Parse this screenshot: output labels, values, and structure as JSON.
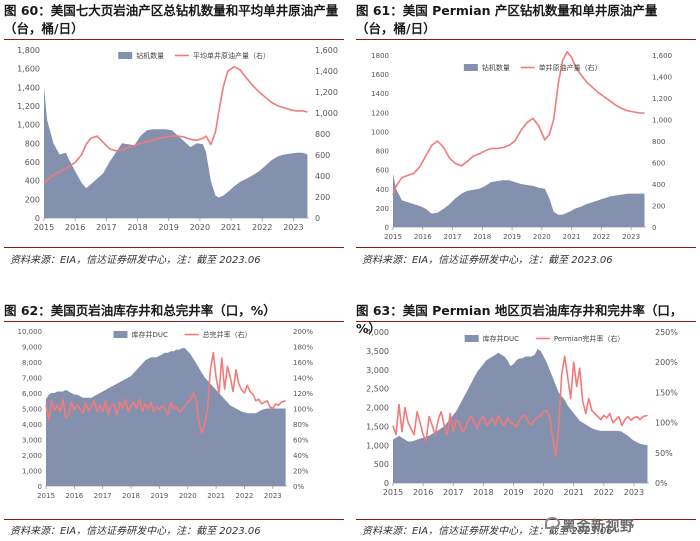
{
  "panels": {
    "p60": {
      "title": "图 60：美国七大页岩油产区总钻机数量和平均单井原油产量（台，桶/日）",
      "source": "资料来源：EIA，信达证券研发中心，注：截至 2023.06"
    },
    "p61": {
      "title": "图 61：美国 Permian 产区钻机数量和单井原油产量（台，桶/日）",
      "source": "资料来源：EIA，信达证券研发中心，注：截至 2023.06"
    },
    "p62": {
      "title": "图 62：美国页岩油库存井和总完井率（口，%）",
      "source": "资料来源：EIA，信达证券研发中心，注：截至 2023.06"
    },
    "p63": {
      "title": "图 63：美国 Permian 地区页岩油库存井和完井率（口，%）",
      "source": "资料来源：EIA，信达证券研发中心，注：截至 2023.06"
    }
  },
  "watermark": "黑金新视野",
  "colors": {
    "area": "#8390ae",
    "line": "#f27a7a",
    "accent": "#8b1a1a"
  },
  "chart_data": [
    {
      "id": "c60",
      "type": "area",
      "title": "美国七大页岩油产区总钻机数量和平均单井原油产量（台，桶/日）",
      "x": [
        2015.0,
        2015.1,
        2015.3,
        2015.5,
        2015.7,
        2015.8,
        2016.0,
        2016.2,
        2016.35,
        2016.5,
        2016.7,
        2016.9,
        2017.1,
        2017.3,
        2017.5,
        2017.7,
        2017.9,
        2018.1,
        2018.3,
        2018.5,
        2018.7,
        2018.9,
        2019.1,
        2019.3,
        2019.5,
        2019.7,
        2019.9,
        2020.1,
        2020.2,
        2020.35,
        2020.5,
        2020.6,
        2020.75,
        2020.9,
        2021.1,
        2021.3,
        2021.5,
        2021.7,
        2021.9,
        2022.1,
        2022.3,
        2022.5,
        2022.7,
        2022.9,
        2023.1,
        2023.3,
        2023.45
      ],
      "series": [
        {
          "name": "钻机数量",
          "axis": "left",
          "values": [
            1400,
            1050,
            800,
            680,
            700,
            630,
            500,
            380,
            320,
            360,
            420,
            480,
            600,
            700,
            800,
            790,
            780,
            880,
            940,
            950,
            950,
            950,
            940,
            880,
            820,
            760,
            800,
            790,
            700,
            400,
            240,
            220,
            240,
            280,
            340,
            390,
            420,
            460,
            500,
            560,
            620,
            660,
            680,
            690,
            700,
            700,
            680
          ]
        },
        {
          "name": "平均单井原油产量（右）",
          "axis": "right",
          "values": [
            330,
            360,
            410,
            440,
            470,
            490,
            530,
            600,
            700,
            760,
            780,
            720,
            660,
            640,
            650,
            670,
            690,
            710,
            730,
            740,
            760,
            770,
            780,
            780,
            770,
            750,
            740,
            760,
            780,
            700,
            820,
            1000,
            1250,
            1400,
            1440,
            1410,
            1330,
            1260,
            1200,
            1150,
            1100,
            1070,
            1050,
            1030,
            1020,
            1020,
            1010
          ]
        }
      ],
      "x_ticks": [
        "2015",
        "2016",
        "2017",
        "2018",
        "2019",
        "2020",
        "2021",
        "2022",
        "2023"
      ],
      "ylim_left": [
        0,
        1800
      ],
      "ylim_right": [
        0,
        1600
      ],
      "y_ticks_left": [
        "0",
        "200",
        "400",
        "600",
        "800",
        "1,000",
        "1,200",
        "1,400",
        "1,600",
        "1,800"
      ],
      "y_ticks_right": [
        "0",
        "200",
        "400",
        "600",
        "800",
        "1,000",
        "1,200",
        "1,400",
        "1,600"
      ],
      "legend": [
        "钻机数量",
        "平均单井原油产量（右）"
      ],
      "legend_position": "top-center"
    },
    {
      "id": "c61",
      "type": "area",
      "title": "美国 Permian 产区钻机数量和单井原油产量（台，桶/日）",
      "x": [
        2015.0,
        2015.1,
        2015.3,
        2015.5,
        2015.7,
        2015.9,
        2016.1,
        2016.3,
        2016.5,
        2016.7,
        2016.9,
        2017.1,
        2017.3,
        2017.5,
        2017.7,
        2017.9,
        2018.1,
        2018.3,
        2018.5,
        2018.7,
        2018.9,
        2019.1,
        2019.3,
        2019.5,
        2019.7,
        2019.9,
        2020.1,
        2020.25,
        2020.4,
        2020.55,
        2020.7,
        2020.85,
        2021.0,
        2021.1,
        2021.3,
        2021.5,
        2021.7,
        2021.9,
        2022.1,
        2022.3,
        2022.5,
        2022.7,
        2022.9,
        2023.1,
        2023.3,
        2023.45
      ],
      "series": [
        {
          "name": "钻机数量",
          "axis": "left",
          "values": [
            560,
            400,
            280,
            260,
            240,
            220,
            190,
            140,
            150,
            190,
            240,
            300,
            350,
            380,
            390,
            400,
            430,
            470,
            480,
            490,
            490,
            470,
            450,
            440,
            430,
            410,
            400,
            300,
            160,
            130,
            130,
            150,
            170,
            190,
            210,
            240,
            260,
            280,
            300,
            320,
            330,
            340,
            350,
            350,
            350,
            350
          ]
        },
        {
          "name": "单井原油产量（右）",
          "axis": "right",
          "values": [
            300,
            380,
            460,
            480,
            500,
            560,
            660,
            760,
            800,
            740,
            640,
            590,
            570,
            610,
            660,
            680,
            710,
            730,
            730,
            740,
            760,
            800,
            900,
            970,
            1010,
            940,
            810,
            860,
            1000,
            1330,
            1550,
            1630,
            1580,
            1510,
            1420,
            1350,
            1300,
            1250,
            1210,
            1170,
            1130,
            1100,
            1080,
            1070,
            1060,
            1060
          ]
        }
      ],
      "x_ticks": [
        "2015",
        "2016",
        "2017",
        "2018",
        "2019",
        "2020",
        "2021",
        "2022",
        "2023"
      ],
      "ylim_left": [
        0,
        1800
      ],
      "ylim_right": [
        0,
        1600
      ],
      "y_ticks_left": [
        "0",
        "200",
        "400",
        "600",
        "800",
        "1000",
        "1200",
        "1400",
        "1600",
        "1800"
      ],
      "y_ticks_right": [
        "0",
        "200",
        "400",
        "600",
        "800",
        "1,000",
        "1,200",
        "1,400",
        "1,600"
      ],
      "legend": [
        "钻机数量",
        "单井原油产量（右）"
      ],
      "legend_position": "top-center"
    },
    {
      "id": "c62",
      "type": "area",
      "title": "美国页岩油库存井和总完井率（口，%）",
      "x": [
        2015.0,
        2015.1,
        2015.2,
        2015.3,
        2015.4,
        2015.5,
        2015.6,
        2015.7,
        2015.8,
        2015.9,
        2016.0,
        2016.1,
        2016.2,
        2016.3,
        2016.4,
        2016.5,
        2016.6,
        2016.7,
        2016.8,
        2016.9,
        2017.0,
        2017.1,
        2017.2,
        2017.3,
        2017.4,
        2017.5,
        2017.6,
        2017.7,
        2017.8,
        2017.9,
        2018.0,
        2018.1,
        2018.2,
        2018.3,
        2018.4,
        2018.5,
        2018.6,
        2018.7,
        2018.8,
        2018.9,
        2019.0,
        2019.1,
        2019.2,
        2019.3,
        2019.4,
        2019.5,
        2019.6,
        2019.7,
        2019.8,
        2019.9,
        2020.0,
        2020.1,
        2020.2,
        2020.3,
        2020.4,
        2020.5,
        2020.6,
        2020.7,
        2020.8,
        2020.9,
        2021.0,
        2021.1,
        2021.2,
        2021.3,
        2021.4,
        2021.5,
        2021.6,
        2021.7,
        2021.8,
        2021.9,
        2022.0,
        2022.1,
        2022.2,
        2022.3,
        2022.4,
        2022.5,
        2022.6,
        2022.7,
        2022.8,
        2022.9,
        2023.0,
        2023.1,
        2023.2,
        2023.3,
        2023.45
      ],
      "series": [
        {
          "name": "库存井DUC",
          "axis": "left",
          "values": [
            5600,
            5900,
            6000,
            6000,
            6100,
            6100,
            6100,
            6200,
            6100,
            6000,
            5900,
            5900,
            5800,
            5700,
            5700,
            5700,
            5700,
            5800,
            5900,
            6000,
            6100,
            6200,
            6300,
            6400,
            6500,
            6600,
            6700,
            6800,
            6900,
            7000,
            7100,
            7300,
            7500,
            7700,
            7900,
            8100,
            8200,
            8300,
            8300,
            8300,
            8400,
            8500,
            8600,
            8600,
            8700,
            8700,
            8800,
            8800,
            8900,
            8900,
            8700,
            8500,
            8200,
            7900,
            7600,
            7300,
            7000,
            6800,
            6600,
            6400,
            6200,
            6000,
            5800,
            5600,
            5400,
            5200,
            5100,
            5000,
            4900,
            4800,
            4750,
            4700,
            4700,
            4700,
            4700,
            4800,
            4900,
            4950,
            5000,
            5000,
            5000,
            5000,
            5000,
            5000,
            5000
          ]
        },
        {
          "name": "总完井率（右）",
          "axis": "right",
          "values": [
            105,
            85,
            110,
            98,
            104,
            96,
            112,
            88,
            92,
            108,
            98,
            104,
            100,
            94,
            107,
            97,
            103,
            110,
            96,
            104,
            96,
            110,
            92,
            104,
            106,
            92,
            108,
            100,
            112,
            96,
            104,
            108,
            100,
            112,
            96,
            106,
            100,
            108,
            96,
            102,
            98,
            104,
            100,
            92,
            108,
            100,
            102,
            96,
            98,
            104,
            108,
            112,
            120,
            110,
            82,
            68,
            80,
            100,
            150,
            172,
            140,
            120,
            165,
            125,
            154,
            140,
            122,
            150,
            132,
            124,
            120,
            130,
            122,
            118,
            110,
            112,
            106,
            108,
            110,
            102,
            100,
            106,
            104,
            108,
            110
          ]
        }
      ],
      "x_ticks": [
        "2015",
        "2016",
        "2017",
        "2018",
        "2019",
        "2020",
        "2021",
        "2022",
        "2023"
      ],
      "ylim_left": [
        0,
        10000
      ],
      "ylim_right": [
        0,
        200
      ],
      "y_ticks_left": [
        "0",
        "1,000",
        "2,000",
        "3,000",
        "4,000",
        "5,000",
        "6,000",
        "7,000",
        "8,000",
        "9,000",
        "10,000"
      ],
      "y_ticks_right": [
        "0%",
        "20%",
        "40%",
        "60%",
        "80%",
        "100%",
        "120%",
        "140%",
        "160%",
        "180%",
        "200%"
      ],
      "legend": [
        "库存井DUC",
        "总完井率（右）"
      ],
      "legend_position": "top-center"
    },
    {
      "id": "c63",
      "type": "area",
      "title": "美国 Permian 地区页岩油库存井和完井率（口，%）",
      "x": [
        2015.0,
        2015.1,
        2015.2,
        2015.3,
        2015.4,
        2015.5,
        2015.6,
        2015.7,
        2015.8,
        2015.9,
        2016.0,
        2016.1,
        2016.2,
        2016.3,
        2016.4,
        2016.5,
        2016.6,
        2016.7,
        2016.8,
        2016.9,
        2017.0,
        2017.1,
        2017.2,
        2017.3,
        2017.4,
        2017.5,
        2017.6,
        2017.7,
        2017.8,
        2017.9,
        2018.0,
        2018.1,
        2018.2,
        2018.3,
        2018.4,
        2018.5,
        2018.6,
        2018.7,
        2018.8,
        2018.9,
        2019.0,
        2019.1,
        2019.2,
        2019.3,
        2019.4,
        2019.5,
        2019.6,
        2019.7,
        2019.8,
        2019.9,
        2020.0,
        2020.1,
        2020.2,
        2020.3,
        2020.4,
        2020.5,
        2020.6,
        2020.7,
        2020.8,
        2020.9,
        2021.0,
        2021.1,
        2021.2,
        2021.3,
        2021.4,
        2021.5,
        2021.6,
        2021.7,
        2021.8,
        2021.9,
        2022.0,
        2022.1,
        2022.2,
        2022.3,
        2022.4,
        2022.5,
        2022.6,
        2022.7,
        2022.8,
        2022.9,
        2023.0,
        2023.1,
        2023.2,
        2023.3,
        2023.45
      ],
      "series": [
        {
          "name": "库存井DUC",
          "axis": "left",
          "values": [
            1150,
            1200,
            1250,
            1200,
            1150,
            1100,
            1100,
            1120,
            1150,
            1180,
            1200,
            1230,
            1250,
            1300,
            1350,
            1400,
            1450,
            1500,
            1600,
            1700,
            1800,
            1900,
            2050,
            2200,
            2350,
            2500,
            2650,
            2800,
            2950,
            3050,
            3150,
            3250,
            3300,
            3350,
            3400,
            3450,
            3400,
            3350,
            3250,
            3100,
            3150,
            3250,
            3300,
            3300,
            3350,
            3350,
            3350,
            3400,
            3550,
            3500,
            3350,
            3200,
            3000,
            2800,
            2600,
            2400,
            2300,
            2200,
            2050,
            1950,
            1850,
            1750,
            1650,
            1600,
            1550,
            1500,
            1450,
            1420,
            1400,
            1380,
            1380,
            1380,
            1380,
            1380,
            1380,
            1380,
            1360,
            1300,
            1250,
            1180,
            1120,
            1080,
            1040,
            1020,
            1000
          ]
        },
        {
          "name": "Permian完井率（右）",
          "axis": "right",
          "values": [
            95,
            80,
            130,
            85,
            125,
            100,
            90,
            80,
            118,
            100,
            80,
            70,
            110,
            95,
            80,
            105,
            118,
            95,
            80,
            115,
            85,
            105,
            100,
            85,
            90,
            105,
            110,
            100,
            90,
            105,
            110,
            95,
            100,
            108,
            96,
            112,
            100,
            95,
            108,
            100,
            98,
            92,
            105,
            110,
            112,
            100,
            96,
            105,
            108,
            112,
            118,
            120,
            110,
            75,
            45,
            90,
            180,
            210,
            175,
            140,
            200,
            160,
            190,
            135,
            115,
            140,
            120,
            115,
            110,
            105,
            112,
            108,
            115,
            100,
            105,
            110,
            95,
            105,
            110,
            104,
            108,
            110,
            105,
            110,
            112
          ]
        }
      ],
      "x_ticks": [
        "2015",
        "2016",
        "2017",
        "2018",
        "2019",
        "2020",
        "2021",
        "2022",
        "2023"
      ],
      "ylim_left": [
        0,
        4000
      ],
      "ylim_right": [
        0,
        250
      ],
      "y_ticks_left": [
        "0",
        "500",
        "1,000",
        "1,500",
        "2,000",
        "2,500",
        "3,000",
        "3,500",
        "4,000"
      ],
      "y_ticks_right": [
        "0%",
        "50%",
        "100%",
        "150%",
        "200%",
        "250%"
      ],
      "legend": [
        "库存井DUC",
        "Permian完井率（右）"
      ],
      "legend_position": "top-center"
    }
  ]
}
